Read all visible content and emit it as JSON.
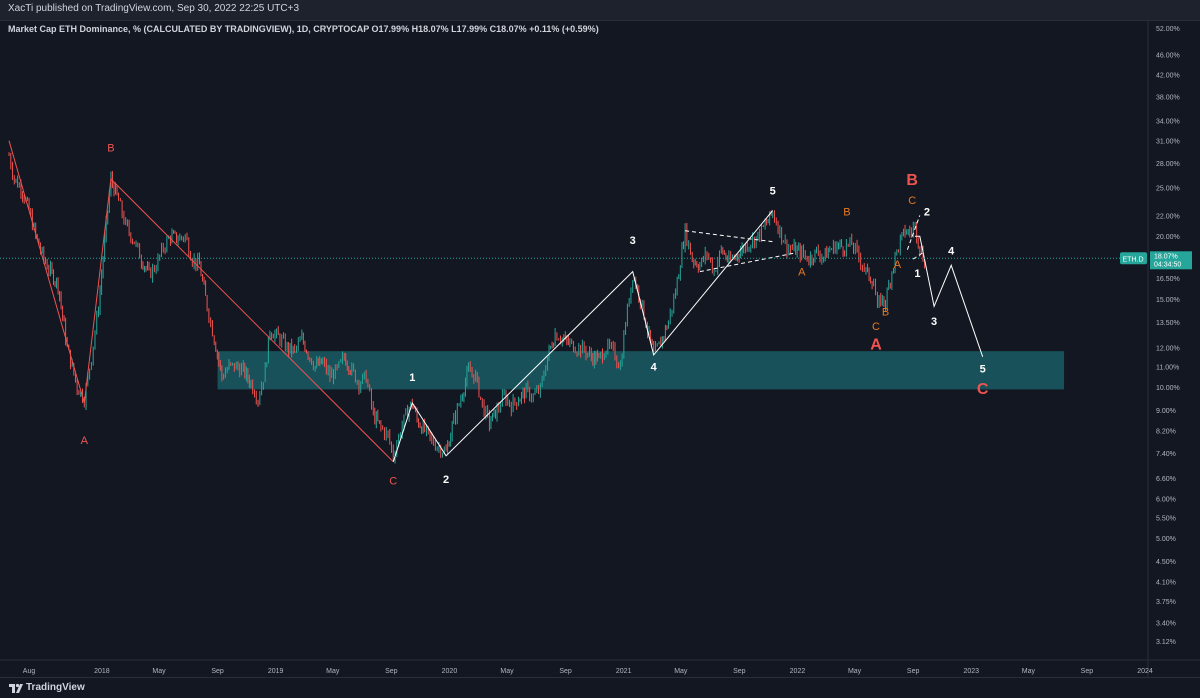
{
  "publisher": "XacTi published on TradingView.com, Sep 30, 2022 22:25 UTC+3",
  "brand": "TradingView",
  "symbol_label": "ETH.D",
  "price_label": "18.07%",
  "time_label": "04:34:50",
  "legend_line": "Market Cap ETH Dominance, % (CALCULATED BY TRADINGVIEW), 1D, CRYPTOCAP  O17.99%  H18.07%  L17.99%  C18.07%  +0.11% (+0.59%)",
  "colors": {
    "up": "#26a69a",
    "down": "#ef5350",
    "zone": "#1a5c63",
    "wave_red": "#ef5350",
    "wave_orange": "#e67a22",
    "white": "#ffffff"
  },
  "chart_data": {
    "type": "line",
    "y_scale": "log",
    "ylim": [
      3.0,
      53.0
    ],
    "y_ticks": [
      "52.00%",
      "46.00%",
      "42.00%",
      "38.00%",
      "34.00%",
      "31.00%",
      "28.00%",
      "25.00%",
      "22.00%",
      "20.00%",
      "18.00%",
      "16.50%",
      "15.00%",
      "13.50%",
      "12.00%",
      "11.00%",
      "10.00%",
      "9.00%",
      "8.20%",
      "7.40%",
      "6.60%",
      "6.00%",
      "5.50%",
      "5.00%",
      "4.50%",
      "4.10%",
      "3.75%",
      "3.40%",
      "3.12%"
    ],
    "x_ticks": [
      "Aug",
      "2018",
      "May",
      "Sep",
      "2019",
      "May",
      "Sep",
      "2020",
      "May",
      "Sep",
      "2021",
      "May",
      "Sep",
      "2022",
      "May",
      "Sep",
      "2023",
      "May",
      "Sep",
      "2024"
    ],
    "price_series": [
      [
        "2017-06-20",
        29.0
      ],
      [
        "2017-07-01",
        26.0
      ],
      [
        "2017-07-15",
        25.0
      ],
      [
        "2017-08-01",
        22.5
      ],
      [
        "2017-08-15",
        20.0
      ],
      [
        "2017-09-01",
        18.0
      ],
      [
        "2017-09-15",
        17.0
      ],
      [
        "2017-10-01",
        16.0
      ],
      [
        "2017-10-20",
        12.0
      ],
      [
        "2017-11-10",
        10.0
      ],
      [
        "2017-11-25",
        9.5
      ],
      [
        "2017-12-10",
        11.5
      ],
      [
        "2017-12-25",
        14.5
      ],
      [
        "2018-01-10",
        21.0
      ],
      [
        "2018-01-20",
        26.0
      ],
      [
        "2018-02-05",
        23.5
      ],
      [
        "2018-02-20",
        21.0
      ],
      [
        "2018-03-10",
        19.5
      ],
      [
        "2018-03-25",
        18.0
      ],
      [
        "2018-04-10",
        16.8
      ],
      [
        "2018-04-25",
        17.5
      ],
      [
        "2018-05-10",
        19.0
      ],
      [
        "2018-05-25",
        20.0
      ],
      [
        "2018-06-10",
        19.8
      ],
      [
        "2018-06-25",
        20.0
      ],
      [
        "2018-07-10",
        18.0
      ],
      [
        "2018-07-25",
        17.5
      ],
      [
        "2018-08-10",
        14.5
      ],
      [
        "2018-08-25",
        12.5
      ],
      [
        "2018-09-10",
        10.5
      ],
      [
        "2018-09-25",
        11.0
      ],
      [
        "2018-10-10",
        11.0
      ],
      [
        "2018-10-25",
        10.8
      ],
      [
        "2018-11-10",
        10.2
      ],
      [
        "2018-11-25",
        9.5
      ],
      [
        "2018-12-10",
        10.8
      ],
      [
        "2018-12-20",
        13.0
      ],
      [
        "2019-01-10",
        12.5
      ],
      [
        "2019-01-25",
        12.0
      ],
      [
        "2019-02-10",
        11.8
      ],
      [
        "2019-02-25",
        12.5
      ],
      [
        "2019-03-10",
        11.7
      ],
      [
        "2019-03-25",
        11.0
      ],
      [
        "2019-04-10",
        11.2
      ],
      [
        "2019-04-25",
        10.5
      ],
      [
        "2019-05-10",
        10.8
      ],
      [
        "2019-05-25",
        11.5
      ],
      [
        "2019-06-10",
        10.8
      ],
      [
        "2019-06-25",
        10.2
      ],
      [
        "2019-07-10",
        10.5
      ],
      [
        "2019-07-25",
        8.8
      ],
      [
        "2019-08-10",
        8.3
      ],
      [
        "2019-08-25",
        8.0
      ],
      [
        "2019-09-05",
        7.3
      ],
      [
        "2019-09-20",
        8.2
      ],
      [
        "2019-10-05",
        9.0
      ],
      [
        "2019-10-15",
        9.3
      ],
      [
        "2019-10-25",
        8.6
      ],
      [
        "2019-11-10",
        8.2
      ],
      [
        "2019-11-25",
        7.8
      ],
      [
        "2019-12-10",
        7.6
      ],
      [
        "2019-12-25",
        7.4
      ],
      [
        "2020-01-10",
        8.6
      ],
      [
        "2020-01-25",
        9.5
      ],
      [
        "2020-02-10",
        10.8
      ],
      [
        "2020-02-25",
        10.5
      ],
      [
        "2020-03-10",
        9.2
      ],
      [
        "2020-03-25",
        8.5
      ],
      [
        "2020-04-10",
        9.0
      ],
      [
        "2020-04-25",
        9.6
      ],
      [
        "2020-05-10",
        9.2
      ],
      [
        "2020-05-25",
        9.5
      ],
      [
        "2020-06-10",
        9.8
      ],
      [
        "2020-06-25",
        9.6
      ],
      [
        "2020-07-10",
        9.9
      ],
      [
        "2020-07-25",
        11.5
      ],
      [
        "2020-08-10",
        12.8
      ],
      [
        "2020-08-25",
        12.5
      ],
      [
        "2020-09-10",
        12.2
      ],
      [
        "2020-09-25",
        12.0
      ],
      [
        "2020-10-10",
        11.9
      ],
      [
        "2020-10-25",
        11.5
      ],
      [
        "2020-11-10",
        11.4
      ],
      [
        "2020-11-25",
        12.0
      ],
      [
        "2020-12-10",
        11.8
      ],
      [
        "2020-12-25",
        11.0
      ],
      [
        "2021-01-05",
        13.5
      ],
      [
        "2021-01-20",
        16.8
      ],
      [
        "2021-02-05",
        15.0
      ],
      [
        "2021-02-20",
        13.0
      ],
      [
        "2021-03-05",
        11.6
      ],
      [
        "2021-03-20",
        12.3
      ],
      [
        "2021-04-05",
        13.5
      ],
      [
        "2021-04-20",
        15.5
      ],
      [
        "2021-05-10",
        20.5
      ],
      [
        "2021-05-25",
        18.0
      ],
      [
        "2021-06-10",
        17.5
      ],
      [
        "2021-06-25",
        18.5
      ],
      [
        "2021-07-10",
        17.0
      ],
      [
        "2021-07-25",
        18.8
      ],
      [
        "2021-08-10",
        17.8
      ],
      [
        "2021-08-25",
        18.3
      ],
      [
        "2021-09-10",
        19.0
      ],
      [
        "2021-09-25",
        19.5
      ],
      [
        "2021-10-10",
        20.0
      ],
      [
        "2021-10-25",
        21.0
      ],
      [
        "2021-11-10",
        22.3
      ],
      [
        "2021-11-25",
        20.5
      ],
      [
        "2021-12-10",
        19.0
      ],
      [
        "2021-12-25",
        18.8
      ],
      [
        "2022-01-10",
        18.5
      ],
      [
        "2022-01-25",
        18.0
      ],
      [
        "2022-02-10",
        18.6
      ],
      [
        "2022-02-25",
        18.2
      ],
      [
        "2022-03-10",
        18.8
      ],
      [
        "2022-03-25",
        19.2
      ],
      [
        "2022-04-10",
        19.0
      ],
      [
        "2022-04-25",
        19.3
      ],
      [
        "2022-05-10",
        18.2
      ],
      [
        "2022-05-25",
        17.0
      ],
      [
        "2022-06-10",
        16.2
      ],
      [
        "2022-06-18",
        14.3
      ],
      [
        "2022-06-25",
        15.0
      ],
      [
        "2022-07-05",
        14.8
      ],
      [
        "2022-07-15",
        16.5
      ],
      [
        "2022-07-25",
        18.2
      ],
      [
        "2022-08-05",
        19.5
      ],
      [
        "2022-08-15",
        20.5
      ],
      [
        "2022-08-25",
        20.3
      ],
      [
        "2022-09-05",
        21.0
      ],
      [
        "2022-09-15",
        19.0
      ],
      [
        "2022-09-25",
        17.8
      ],
      [
        "2022-09-30",
        18.07
      ]
    ],
    "wave_lines": [
      {
        "color": "red",
        "points": [
          [
            "2017-06-20",
            31.0
          ],
          [
            "2017-11-25",
            9.3
          ],
          [
            "2018-01-20",
            26.0
          ],
          [
            "2019-09-05",
            7.1
          ]
        ]
      },
      {
        "color": "white",
        "points": [
          [
            "2019-09-05",
            7.1
          ],
          [
            "2019-10-15",
            9.3
          ],
          [
            "2019-12-25",
            7.3
          ],
          [
            "2021-01-20",
            17.0
          ],
          [
            "2021-03-05",
            11.6
          ],
          [
            "2021-11-10",
            22.5
          ]
        ]
      },
      {
        "color": "white",
        "points": [
          [
            "2022-09-05",
            20.0
          ],
          [
            "2022-09-15",
            20.0
          ],
          [
            "2022-10-15",
            14.5
          ],
          [
            "2022-11-20",
            17.5
          ],
          [
            "2023-01-25",
            11.5
          ]
        ]
      }
    ],
    "dashed_lines": [
      {
        "points": [
          [
            "2021-05-10",
            20.5
          ],
          [
            "2021-11-10",
            19.5
          ]
        ]
      },
      {
        "points": [
          [
            "2021-06-10",
            17.0
          ],
          [
            "2021-12-25",
            18.5
          ]
        ]
      },
      {
        "points": [
          [
            "2022-08-20",
            18.8
          ],
          [
            "2022-09-15",
            22.0
          ]
        ]
      },
      {
        "points": [
          [
            "2022-09-01",
            18.0
          ],
          [
            "2022-09-20",
            18.5
          ]
        ]
      }
    ],
    "zone": {
      "x_start": "2018-09-01",
      "x_end": "2023-07-15",
      "y_low": 9.9,
      "y_high": 11.8
    },
    "labels": [
      {
        "text": "A",
        "color": "red",
        "x": "2017-11-25",
        "y": 7.7,
        "size": "small"
      },
      {
        "text": "B",
        "color": "red",
        "x": "2018-01-20",
        "y": 29.5,
        "size": "small"
      },
      {
        "text": "C",
        "color": "red",
        "x": "2019-09-05",
        "y": 6.4,
        "size": "small"
      },
      {
        "text": "1",
        "color": "white",
        "x": "2019-10-15",
        "y": 10.3,
        "size": "small"
      },
      {
        "text": "2",
        "color": "white",
        "x": "2019-12-25",
        "y": 6.45,
        "size": "small"
      },
      {
        "text": "3",
        "color": "white",
        "x": "2021-01-20",
        "y": 19.3,
        "size": "small"
      },
      {
        "text": "4",
        "color": "white",
        "x": "2021-03-05",
        "y": 10.8,
        "size": "small"
      },
      {
        "text": "5",
        "color": "white",
        "x": "2021-11-10",
        "y": 24.2,
        "size": "small"
      },
      {
        "text": "A",
        "color": "orange",
        "x": "2022-01-10",
        "y": 16.7,
        "size": "small"
      },
      {
        "text": "B",
        "color": "orange",
        "x": "2022-04-15",
        "y": 22.0,
        "size": "small"
      },
      {
        "text": "C",
        "color": "orange",
        "x": "2022-06-15",
        "y": 13.0,
        "size": "small"
      },
      {
        "text": "B",
        "color": "orange",
        "x": "2022-07-05",
        "y": 13.9,
        "size": "small"
      },
      {
        "text": "A",
        "color": "orange",
        "x": "2022-07-30",
        "y": 17.3,
        "size": "small"
      },
      {
        "text": "C",
        "color": "orange",
        "x": "2022-08-30",
        "y": 23.2,
        "size": "small"
      },
      {
        "text": "B",
        "color": "red",
        "x": "2022-08-30",
        "y": 25.3,
        "size": "large"
      },
      {
        "text": "2",
        "color": "white",
        "x": "2022-09-30",
        "y": 22.0,
        "size": "small"
      },
      {
        "text": "1",
        "color": "white",
        "x": "2022-09-10",
        "y": 16.6,
        "size": "small"
      },
      {
        "text": "A",
        "color": "red",
        "x": "2022-06-15",
        "y": 11.9,
        "size": "large"
      },
      {
        "text": "3",
        "color": "white",
        "x": "2022-10-15",
        "y": 13.3,
        "size": "small"
      },
      {
        "text": "4",
        "color": "white",
        "x": "2022-11-20",
        "y": 18.4,
        "size": "small"
      },
      {
        "text": "5",
        "color": "white",
        "x": "2023-01-25",
        "y": 10.7,
        "size": "small"
      },
      {
        "text": "C",
        "color": "red",
        "x": "2023-01-25",
        "y": 9.7,
        "size": "large"
      }
    ]
  }
}
